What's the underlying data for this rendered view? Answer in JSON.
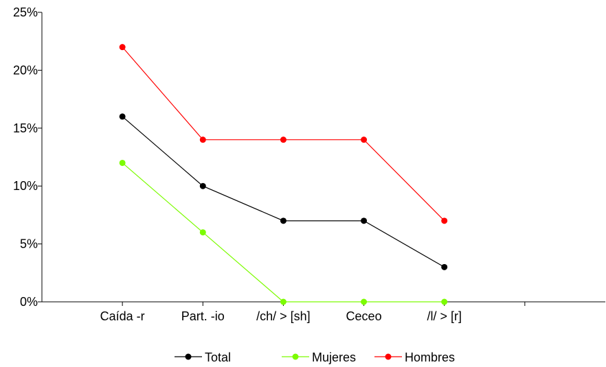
{
  "chart_data": {
    "type": "line",
    "title": "",
    "xlabel": "",
    "ylabel": "",
    "categories": [
      "Caída -r",
      "Part. -io",
      "/ch/ > [sh]",
      "Ceceo",
      "/l/ > [r]"
    ],
    "ylim": [
      0,
      25
    ],
    "yticks": [
      0,
      5,
      10,
      15,
      20,
      25
    ],
    "ytick_labels": [
      "0%",
      "5%",
      "10%",
      "15%",
      "20%",
      "25%"
    ],
    "y_unit": "%",
    "grid": false,
    "legend_position": "bottom",
    "series": [
      {
        "name": "Total",
        "color": "#000000",
        "values": [
          16,
          10,
          7,
          7,
          3
        ]
      },
      {
        "name": "Mujeres",
        "color": "#7CFC00",
        "values": [
          12,
          6,
          0,
          0,
          0
        ]
      },
      {
        "name": "Hombres",
        "color": "#FF0000",
        "values": [
          22,
          14,
          14,
          14,
          7
        ]
      }
    ]
  }
}
